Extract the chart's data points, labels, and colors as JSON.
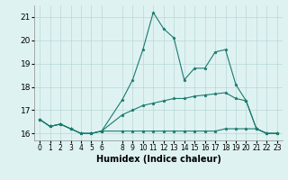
{
  "xlabel": "Humidex (Indice chaleur)",
  "x_values": [
    0,
    1,
    2,
    3,
    4,
    5,
    6,
    8,
    9,
    10,
    11,
    12,
    13,
    14,
    15,
    16,
    17,
    18,
    19,
    20,
    21,
    22,
    23
  ],
  "line1": [
    16.6,
    16.3,
    16.4,
    16.2,
    16.0,
    16.0,
    16.1,
    16.1,
    16.1,
    16.1,
    16.1,
    16.1,
    16.1,
    16.1,
    16.1,
    16.1,
    16.1,
    16.2,
    16.2,
    16.2,
    16.2,
    16.0,
    16.0
  ],
  "line2": [
    16.6,
    16.3,
    16.4,
    16.2,
    16.0,
    16.0,
    16.1,
    16.8,
    17.0,
    17.2,
    17.3,
    17.4,
    17.5,
    17.5,
    17.6,
    17.65,
    17.7,
    17.75,
    17.5,
    17.4,
    16.2,
    16.0,
    16.0
  ],
  "line3": [
    16.6,
    16.3,
    16.4,
    16.2,
    16.0,
    16.0,
    16.1,
    17.45,
    18.3,
    19.6,
    21.2,
    20.5,
    20.1,
    18.3,
    18.8,
    18.8,
    19.5,
    19.6,
    18.1,
    17.4,
    16.2,
    16.0,
    16.0
  ],
  "line_color": "#1a7a6e",
  "bg_color": "#dff2f2",
  "grid_color": "#b8d8d8",
  "ylim": [
    15.7,
    21.5
  ],
  "yticks": [
    16,
    17,
    18,
    19,
    20,
    21
  ],
  "xlim": [
    -0.5,
    23.5
  ],
  "xticks": [
    0,
    1,
    2,
    3,
    4,
    5,
    6,
    8,
    9,
    10,
    11,
    12,
    13,
    14,
    15,
    16,
    17,
    18,
    19,
    20,
    21,
    22,
    23
  ]
}
